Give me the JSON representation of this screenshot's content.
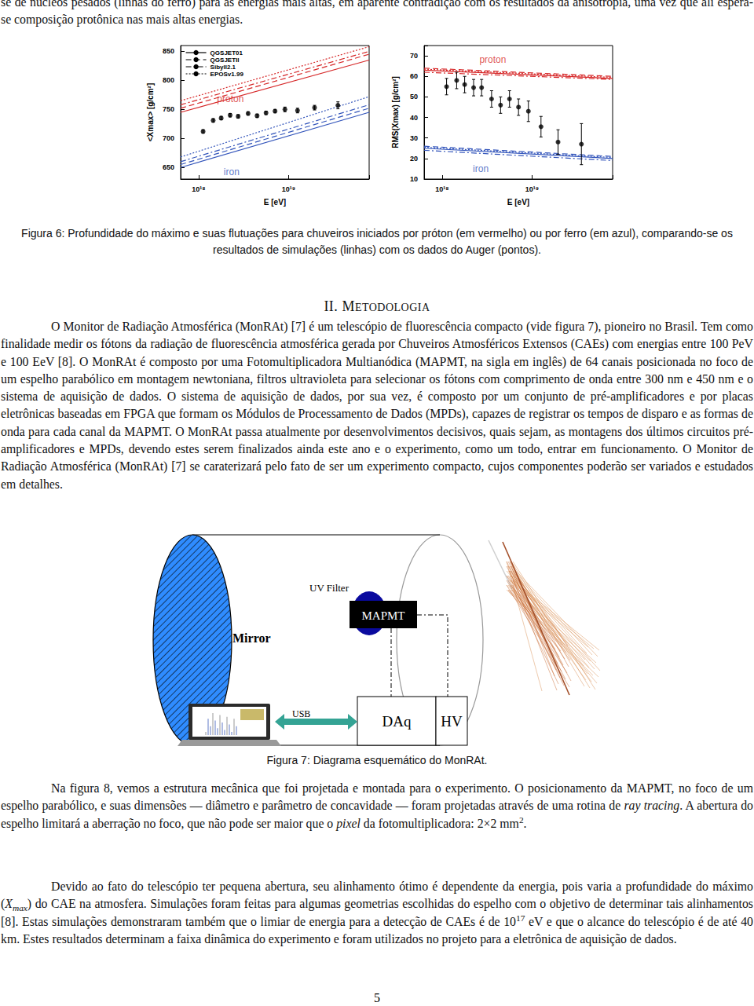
{
  "chart_data": [
    {
      "type": "line",
      "x_label": "E [eV]",
      "y_label": "<Xmax> [g/cm²]",
      "log": "x",
      "xlim": [
        6.3e+17,
        7.9e+19
      ],
      "xticks": [
        {
          "value": 1e+18,
          "label": "10¹⁸"
        },
        {
          "value": 1e+19,
          "label": "10¹⁹"
        }
      ],
      "ylim": [
        630,
        860
      ],
      "yticks": [
        650,
        700,
        750,
        800,
        850
      ],
      "grid": false,
      "legend": "upper left",
      "series": [
        {
          "name": "QGSJET01",
          "color": "#d62728",
          "line_style": "solid",
          "x": [
            6.3e+17,
            7.9e+19
          ],
          "values": [
            745,
            835
          ]
        },
        {
          "name": "QGSJETII",
          "color": "#d62728",
          "line_style": "dashed",
          "x": [
            6.3e+17,
            7.9e+19
          ],
          "values": [
            752,
            845
          ]
        },
        {
          "name": "Sibyll2.1",
          "color": "#d62728",
          "line_style": "dashdot",
          "x": [
            6.3e+17,
            7.9e+19
          ],
          "values": [
            758,
            850
          ]
        },
        {
          "name": "EPOSv1.99",
          "color": "#d62728",
          "line_style": "dotted",
          "x": [
            6.3e+17,
            7.9e+19
          ],
          "values": [
            765,
            858
          ]
        },
        {
          "name": "QGSJET01",
          "color": "#3355bb",
          "line_style": "solid",
          "x": [
            6.3e+17,
            7.9e+19
          ],
          "values": [
            650,
            745
          ]
        },
        {
          "name": "QGSJETII",
          "color": "#3355bb",
          "line_style": "dashed",
          "x": [
            6.3e+17,
            7.9e+19
          ],
          "values": [
            655,
            752
          ]
        },
        {
          "name": "Sibyll2.1",
          "color": "#3355bb",
          "line_style": "dashdot",
          "x": [
            6.3e+17,
            7.9e+19
          ],
          "values": [
            660,
            758
          ]
        },
        {
          "name": "EPOSv1.99",
          "color": "#3355bb",
          "line_style": "dotted",
          "x": [
            6.3e+17,
            7.9e+19
          ],
          "values": [
            668,
            772
          ]
        },
        {
          "type": "scatter",
          "marker": "circle",
          "color": "#000000",
          "x": [
            1.12e+18,
            1.45e+18,
            1.78e+18,
            2.24e+18,
            2.75e+18,
            3.55e+18,
            4.47e+18,
            5.62e+18,
            7.08e+18,
            9.12e+18,
            1.26e+19,
            1.95e+19,
            3.55e+19
          ],
          "values": [
            712,
            731,
            735,
            740,
            738,
            743,
            739,
            744,
            747,
            750,
            748,
            753,
            757
          ],
          "errors": [
            3,
            3,
            3,
            3,
            3,
            3,
            3,
            3,
            3,
            4,
            4,
            4,
            6
          ]
        }
      ],
      "annotations": [
        {
          "text": "proton",
          "x": 1.6e+18,
          "y": 768,
          "color": "#d62728"
        },
        {
          "text": "iron",
          "x": 1.9e+18,
          "y": 642,
          "color": "#3355bb"
        }
      ]
    },
    {
      "type": "line",
      "x_label": "E [eV]",
      "y_label": "RMS(Xmax) [g/cm²]",
      "log": "x",
      "xlim": [
        6.3e+17,
        7.9e+19
      ],
      "xticks": [
        {
          "value": 1e+18,
          "label": "10¹⁸"
        },
        {
          "value": 1e+19,
          "label": "10¹⁹"
        }
      ],
      "ylim": [
        10,
        75
      ],
      "yticks": [
        10,
        20,
        30,
        40,
        50,
        60,
        70
      ],
      "grid": false,
      "series": [
        {
          "color": "#d62728",
          "line_style": "solid",
          "x": [
            6.3e+17,
            7.9e+19
          ],
          "values": [
            63,
            59
          ]
        },
        {
          "color": "#d62728",
          "line_style": "dashed",
          "x": [
            6.3e+17,
            7.9e+19
          ],
          "values": [
            64,
            60
          ]
        },
        {
          "color": "#d62728",
          "line_style": "dashdot",
          "x": [
            6.3e+17,
            7.9e+19
          ],
          "values": [
            62,
            58.5
          ]
        },
        {
          "color": "#d62728",
          "line_style": "dotted",
          "x": [
            6.3e+17,
            7.9e+19
          ],
          "values": [
            63.5,
            59.5
          ]
        },
        {
          "color": "#3355bb",
          "line_style": "solid",
          "x": [
            6.3e+17,
            7.9e+19
          ],
          "values": [
            25,
            20
          ]
        },
        {
          "color": "#3355bb",
          "line_style": "dashed",
          "x": [
            6.3e+17,
            7.9e+19
          ],
          "values": [
            26,
            21
          ]
        },
        {
          "color": "#3355bb",
          "line_style": "dashdot",
          "x": [
            6.3e+17,
            7.9e+19
          ],
          "values": [
            24,
            19
          ]
        },
        {
          "color": "#3355bb",
          "line_style": "dotted",
          "x": [
            6.3e+17,
            7.9e+19
          ],
          "values": [
            25.5,
            20.5
          ]
        },
        {
          "type": "scatter",
          "marker": "circle",
          "color": "#000000",
          "x": [
            1.12e+18,
            1.45e+18,
            1.78e+18,
            2.24e+18,
            2.75e+18,
            3.55e+18,
            4.47e+18,
            5.62e+18,
            7.08e+18,
            9.12e+18,
            1.26e+19,
            1.95e+19,
            3.55e+19
          ],
          "values": [
            55,
            58,
            56,
            54.5,
            54.5,
            49,
            46,
            49,
            45,
            43,
            35.5,
            28,
            27
          ],
          "errors": [
            4,
            4,
            4,
            4,
            4,
            4,
            4,
            4,
            4,
            5,
            5,
            6,
            10
          ]
        }
      ],
      "annotations": [
        {
          "text": "proton",
          "x": 2.6e+18,
          "y": 68,
          "color": "#d62728"
        },
        {
          "text": "iron",
          "x": 2.2e+18,
          "y": 15,
          "color": "#3355bb"
        }
      ]
    }
  ],
  "page": {
    "top_text": [
      "se de núcleos pesados (linhas do ferro) para as energias mais altas, em aparente contradição com os resultados da anisotropia, uma vez que ali espera-se composição protônica nas mais altas energias."
    ],
    "figure6_caption": "Figura 6: Profundidade do máximo e suas flutuações para chuveiros iniciados por próton (em vermelho) ou por ferro (em azul), comparando-se os resultados de simulações (linhas) com os dados do Auger (pontos).",
    "section_heading": "II. METODOLOGIA",
    "paragraphs": [
      [
        "O Monitor de Radiação Atmosférica (MonRAt) [7] é um telescópio de fluorescência compacto (vide figura 7), pioneiro no Brasil. Tem como finalidade medir os fótons da radiação de fluorescência atmosférica gerada por Chuveiros Atmosféricos Extensos (CAEs) com energias entre 100 PeV e 100 EeV [8]. O MonRAt é composto por uma Fotomultiplicadora Multianódica (MAPMT, na sigla em inglês) de 64 canais posicionada no foco de um espelho parabólico em montagem newtoniana, filtros ultravioleta para selecionar os fótons com comprimento de onda entre 300 nm e 450 nm e o sistema de aquisição de dados. O sistema de aquisição de dados, por sua vez, é composto por um conjunto de pré-amplificadores e por placas eletrônicas baseadas em FPGA que formam os Módulos de Processamento de Dados (MPDs), capazes de registrar os tempos de disparo e as formas de onda para cada canal da MAPMT. O MonRAt passa atualmente por desenvolvimentos decisivos, quais sejam, as montagens dos últimos circuitos pré-amplificadores e MPDs, devendo estes serem finalizados ainda este ano e o experimento, como um todo, entrar em funcionamento. O Monitor de Radiação Atmosférica (MonRAt) [7] se caraterizará pelo fato de ser um experimento compacto, cujos componentes poderão ser variados e estudados em detalhes."
      ],
      [
        "Na figura 8, vemos a estrutura mecânica que foi projetada e montada para o experimento. O posicionamento da MAPMT, no foco de um espelho parabólico, e suas dimensões — diâmetro e parâmetro de concavidade — foram projetadas através de uma rotina de ",
        {
          "text": "ray tracing",
          "style": "italic"
        },
        ". A abertura do espelho limitará a aberração no foco, que não pode ser maior que o ",
        {
          "text": "pixel",
          "style": "italic"
        },
        " da fotomultiplicadora: 2×2 mm",
        {
          "text": "2",
          "style": "sup"
        },
        "."
      ],
      [
        "Devido ao fato do telescópio ter pequena abertura, seu alinhamento ótimo é dependente da energia, pois varia a profundidade do máximo (",
        {
          "text": "X",
          "style": "italic"
        },
        {
          "text": "max",
          "style": "sub"
        },
        ") do CAE na atmosfera. Simulações foram feitas para algumas geometrias escolhidas do espelho com o objetivo de determinar tais alinhamentos [8]. Estas simulações demonstraram também que o limiar de energia para a detecção de CAEs é de 10",
        {
          "text": "17",
          "style": "sup"
        },
        " eV e que o alcance do telescópio é de até 40 km. Estes resultados determinam a faixa dinâmica do experimento e foram utilizados no projeto para a eletrônica de aquisição de dados."
      ]
    ],
    "figure7": {
      "labels": {
        "mirror": "Mirror",
        "uv_filter": "UV Filter",
        "mapmt": "MAPMT",
        "usb": "USB",
        "daq": "DAq",
        "hv": "HV"
      },
      "caption": "Figura 7: Diagrama esquemático do MonRAt."
    },
    "page_number": "5"
  }
}
